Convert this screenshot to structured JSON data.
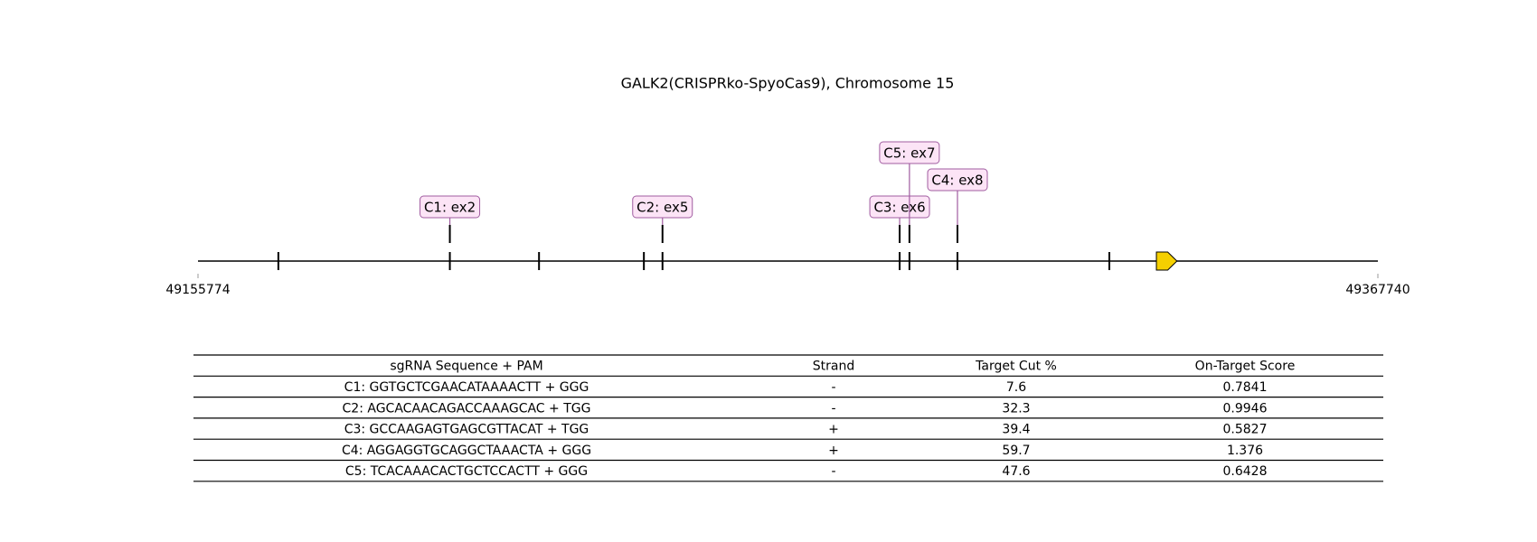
{
  "chart_data": {
    "type": "genome-track",
    "title": "GALK2(CRISPRko-SpyoCas9), Chromosome 15",
    "xlim": [
      49155774,
      49367740
    ],
    "xticks": [
      49155774,
      49367740
    ],
    "exons": [
      49170210,
      49201019,
      49217039,
      49235877,
      49239222,
      49281826,
      49283586,
      49292213,
      49319501
    ],
    "gene_arrow": [
      49327951,
      49331648
    ],
    "arrow_color": "#f5d000",
    "guide_color": "#a05ca0",
    "guide_fill": "#fce4f6",
    "guides": [
      {
        "label": "C1: ex2",
        "position": 49201019
      },
      {
        "label": "C2: ex5",
        "position": 49239222
      },
      {
        "label": "C3: ex6",
        "position": 49281826
      },
      {
        "label": "C4: ex8",
        "position": 49292213
      },
      {
        "label": "C5: ex7",
        "position": 49283586
      }
    ]
  },
  "table": {
    "header": [
      "sgRNA Sequence + PAM",
      "Strand",
      "Target Cut %",
      "On-Target Score"
    ],
    "rows": [
      [
        "C1: GGTGCTCGAACATAAAACTT + GGG",
        "-",
        7.6,
        0.7841
      ],
      [
        "C2: AGCACAACAGACCAAAGCAC + TGG",
        "-",
        32.3,
        0.9946
      ],
      [
        "C3: GCCAAGAGTGAGCGTTACAT + TGG",
        "+",
        39.4,
        0.5827
      ],
      [
        "C4: AGGAGGTGCAGGCTAAACTA + GGG",
        "+",
        59.7,
        1.376
      ],
      [
        "C5: TCACAAACACTGCTCCACTT + GGG",
        "-",
        47.6,
        0.6428
      ]
    ]
  }
}
